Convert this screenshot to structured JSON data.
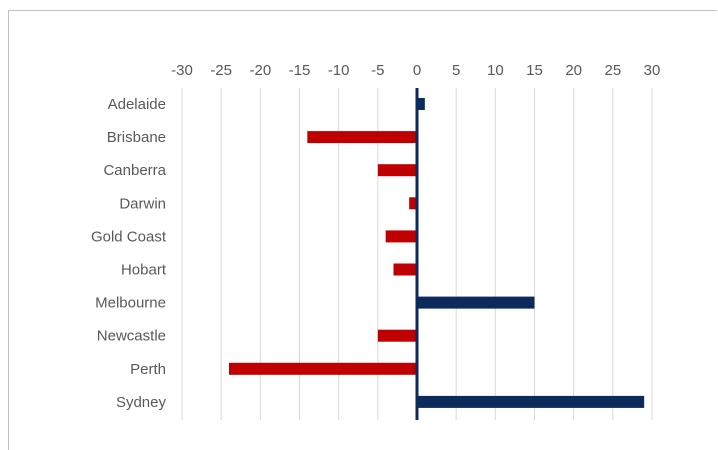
{
  "chart_data": {
    "type": "bar",
    "orientation": "horizontal",
    "title": "",
    "xlabel": "",
    "ylabel": "",
    "categories": [
      "Adelaide",
      "Brisbane",
      "Canberra",
      "Darwin",
      "Gold Coast",
      "Hobart",
      "Melbourne",
      "Newcastle",
      "Perth",
      "Sydney"
    ],
    "values": [
      1,
      -14,
      -5,
      -1,
      -4,
      -3,
      15,
      -5,
      -24,
      29
    ],
    "xlim": [
      -30,
      30
    ],
    "xticks": [
      "-30",
      "-25",
      "-20",
      "-15",
      "-10",
      "-5",
      "0",
      "5",
      "10",
      "15",
      "20",
      "25",
      "30"
    ],
    "axis_position": "top",
    "grid": true,
    "legend": "none",
    "colors": {
      "positive": "#0d2a5c",
      "negative": "#c00000",
      "gridline": "#d9d9d9",
      "zero_line": "#0d2a5c",
      "text": "#595959"
    }
  }
}
